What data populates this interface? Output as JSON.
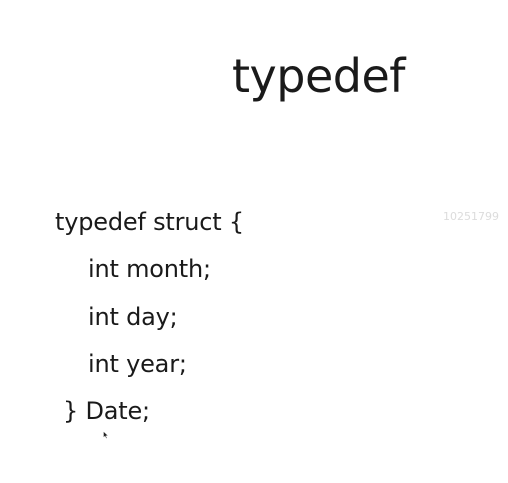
{
  "slide": {
    "title": "typedef",
    "code_lines": [
      "typedef struct {",
      "int month;",
      "int day;",
      "int year;",
      "} Date;"
    ],
    "watermark": "10251799"
  },
  "colors": {
    "background": "#ffffff",
    "text": "#1a1a1a",
    "watermark": "#dcdcdc"
  },
  "icons": {
    "cursor": "mouse-pointer-icon"
  }
}
